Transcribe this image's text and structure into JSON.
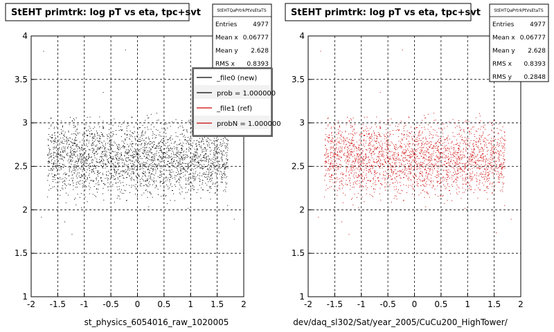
{
  "pads": [
    {
      "title": "StEHT primtrk: log pT vs eta, tpc+svt",
      "xlabel": "st_physics_6054016_raw_1020005",
      "stats": {
        "name": "StEHTQaPrtrkPtVsEtaTS",
        "rows": [
          {
            "label": "Entries",
            "value": "4977"
          },
          {
            "label": "Mean x",
            "value": "0.06777"
          },
          {
            "label": "Mean y",
            "value": "2.628"
          },
          {
            "label": "RMS x",
            "value": "0.8393"
          }
        ]
      },
      "legend": [
        {
          "label": "_file0 (new)",
          "color": "#000000"
        },
        {
          "label": "prob = 1.000000",
          "color": "#000000"
        },
        {
          "label": "_file1 (ref)",
          "color": "#cc0000"
        },
        {
          "label": "probN = 1.000000",
          "color": "#cc0000"
        }
      ]
    },
    {
      "title": "StEHT primtrk: log pT vs eta, tpc+svt",
      "xlabel": "dev/daq_sl302/Sat/year_2005/CuCu200_HighTower/",
      "stats": {
        "name": "StEHTQaPrtrkPtVsEtaTS",
        "rows": [
          {
            "label": "Entries",
            "value": "4977"
          },
          {
            "label": "Mean x",
            "value": "0.06777"
          },
          {
            "label": "Mean y",
            "value": "2.628"
          },
          {
            "label": "RMS x",
            "value": "0.8393"
          },
          {
            "label": "RMS y",
            "value": "0.2848"
          }
        ]
      }
    }
  ],
  "chart_data": [
    {
      "type": "scatter",
      "title": "StEHT primtrk: log pT vs eta, tpc+svt",
      "xlabel": "st_physics_6054016_raw_1020005",
      "ylabel": "",
      "xlim": [
        -2,
        2
      ],
      "ylim": [
        1,
        4
      ],
      "xticks": [
        "-2",
        "-1.5",
        "-1",
        "-0.5",
        "0",
        "0.5",
        "1",
        "1.5",
        "2"
      ],
      "yticks": [
        "1",
        "1.5",
        "2",
        "2.5",
        "3",
        "3.5",
        "4"
      ],
      "grid": true,
      "color": "#000000",
      "entries": 4977,
      "mean_x": 0.06777,
      "mean_y": 2.628,
      "rms_x": 0.8393,
      "rms_y": 0.2848,
      "x_range": [
        -1.7,
        1.7
      ],
      "y_range": [
        2.0,
        3.2
      ],
      "legend_position": "top-right"
    },
    {
      "type": "scatter",
      "title": "StEHT primtrk: log pT vs eta, tpc+svt",
      "xlabel": "dev/daq_sl302/Sat/year_2005/CuCu200_HighTower/",
      "ylabel": "",
      "xlim": [
        -2,
        2
      ],
      "ylim": [
        1,
        4
      ],
      "xticks": [
        "-2",
        "-1.5",
        "-1",
        "-0.5",
        "0",
        "0.5",
        "1",
        "1.5",
        "2"
      ],
      "yticks": [
        "1",
        "1.5",
        "2",
        "2.5",
        "3",
        "3.5",
        "4"
      ],
      "grid": true,
      "color": "#cc0000",
      "entries": 4977,
      "mean_x": 0.06777,
      "mean_y": 2.628,
      "rms_x": 0.8393,
      "rms_y": 0.2848,
      "x_range": [
        -1.7,
        1.7
      ],
      "y_range": [
        2.0,
        3.2
      ]
    }
  ]
}
